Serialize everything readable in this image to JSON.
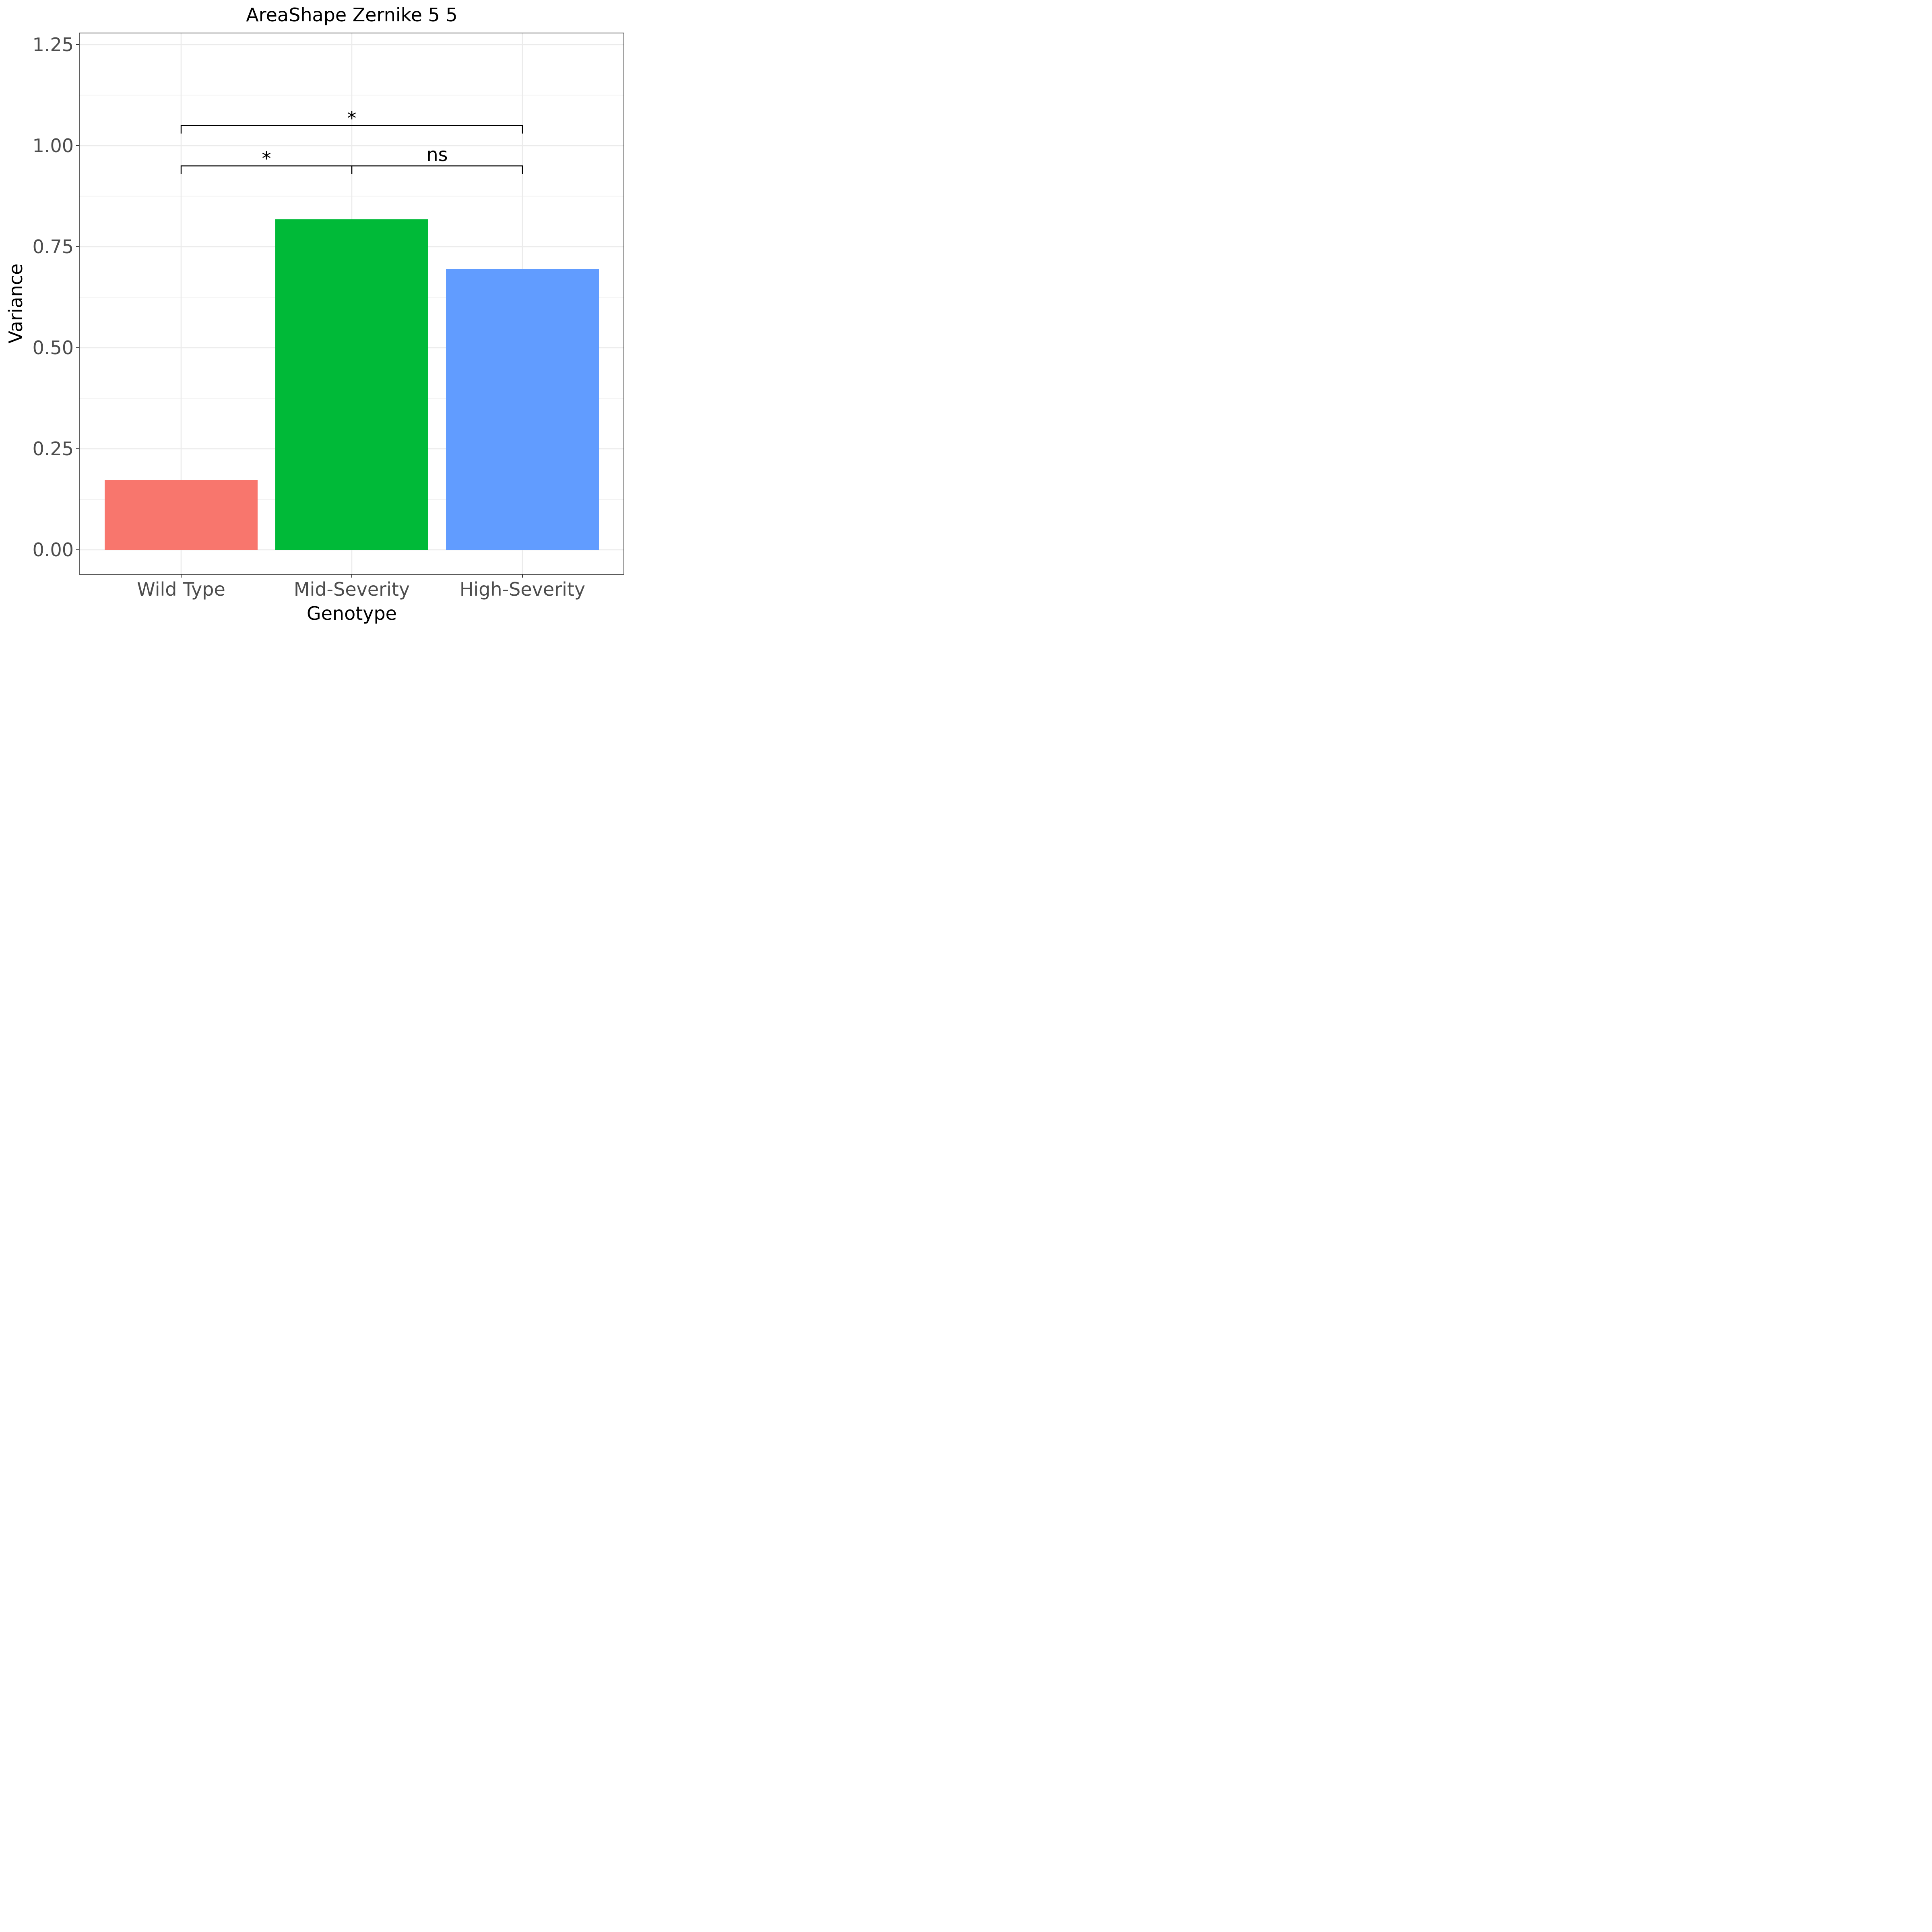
{
  "chart_data": {
    "type": "bar",
    "title": "AreaShape Zernike 5 5",
    "xlabel": "Genotype",
    "ylabel": "Variance",
    "categories": [
      "Wild Type",
      "Mid-Severity",
      "High-Severity"
    ],
    "values": [
      0.173,
      0.818,
      0.695
    ],
    "colors": [
      "#F8766D",
      "#00BA38",
      "#619CFF"
    ],
    "ylim": [
      -0.12,
      1.28
    ],
    "yticks": [
      0.0,
      0.25,
      0.5,
      0.75,
      1.0,
      1.25
    ],
    "ytick_labels": [
      "0.00",
      "0.25",
      "0.50",
      "0.75",
      "1.00",
      "1.25"
    ],
    "grid": true,
    "legend": "none",
    "significance": [
      {
        "from": "Wild Type",
        "to": "Mid-Severity",
        "label": "*",
        "y": 0.95
      },
      {
        "from": "Mid-Severity",
        "to": "High-Severity",
        "label": "ns",
        "y": 0.95
      },
      {
        "from": "Wild Type",
        "to": "High-Severity",
        "label": "*",
        "y": 1.05
      }
    ]
  }
}
